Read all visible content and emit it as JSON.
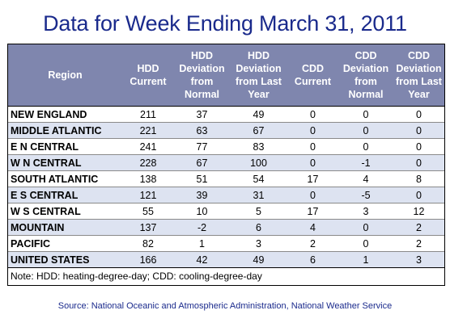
{
  "title": "Data for Week Ending March 31, 2011",
  "columns": [
    [
      "Region"
    ],
    [
      "HDD",
      "Current"
    ],
    [
      "HDD",
      "Deviation",
      "from",
      "Normal"
    ],
    [
      "HDD",
      "Deviation",
      "from Last",
      "Year"
    ],
    [
      "CDD",
      "Current"
    ],
    [
      "CDD",
      "Deviation",
      "from",
      "Normal"
    ],
    [
      "CDD",
      "Deviation",
      "from Last",
      "Year"
    ]
  ],
  "rows": [
    [
      "NEW ENGLAND",
      "211",
      "37",
      "49",
      "0",
      "0",
      "0"
    ],
    [
      "MIDDLE ATLANTIC",
      "221",
      "63",
      "67",
      "0",
      "0",
      "0"
    ],
    [
      "E N CENTRAL",
      "241",
      "77",
      "83",
      "0",
      "0",
      "0"
    ],
    [
      "W N CENTRAL",
      "228",
      "67",
      "100",
      "0",
      "-1",
      "0"
    ],
    [
      "SOUTH ATLANTIC",
      "138",
      "51",
      "54",
      "17",
      "4",
      "8"
    ],
    [
      "E S CENTRAL",
      "121",
      "39",
      "31",
      "0",
      "-5",
      "0"
    ],
    [
      "W S CENTRAL",
      "55",
      "10",
      "5",
      "17",
      "3",
      "12"
    ],
    [
      "MOUNTAIN",
      "137",
      "-2",
      "6",
      "4",
      "0",
      "2"
    ],
    [
      "PACIFIC",
      "82",
      "1",
      "3",
      "2",
      "0",
      "2"
    ],
    [
      "UNITED STATES",
      "166",
      "42",
      "49",
      "6",
      "1",
      "3"
    ]
  ],
  "note": "Note: HDD: heating-degree-day; CDD: cooling-degree-day",
  "source": "Source:  National Oceanic and Atmospheric Administration, National Weather Service",
  "colors": {
    "header_bg": "#7f86ae",
    "alt_row_bg": "#dde3f1",
    "title_color": "#1a2a8c"
  }
}
